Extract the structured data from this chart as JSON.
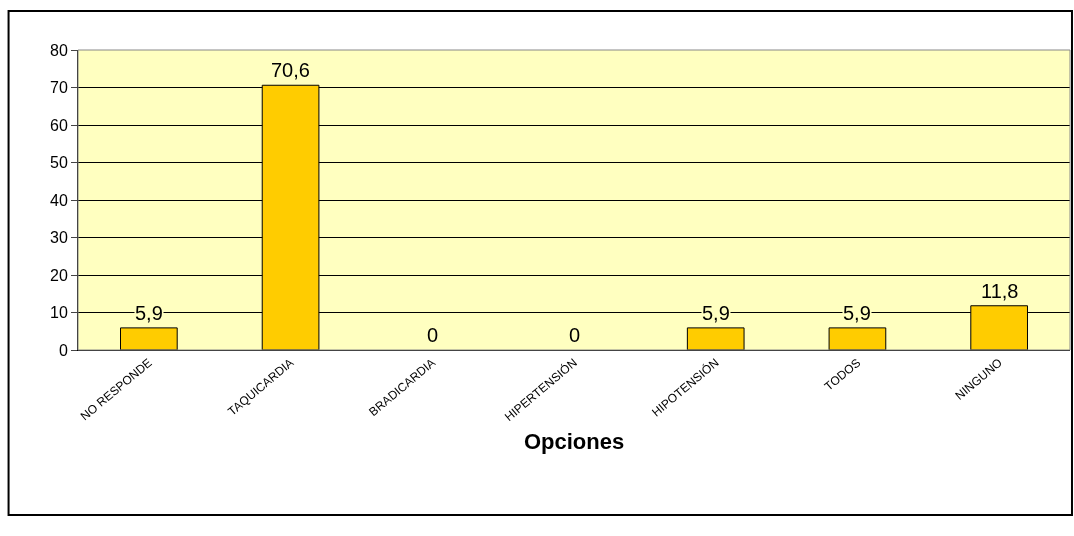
{
  "chart_data": {
    "type": "bar",
    "xlabel": "Opciones",
    "categories": [
      "NO RESPONDE",
      "TAQUICARDIA",
      "BRADICARDIA",
      "HIPERTENSIÓN",
      "HIPOTENSIÓN",
      "TODOS",
      "NINGUNO"
    ],
    "values": [
      5.9,
      70.6,
      0,
      0,
      5.9,
      5.9,
      11.8
    ],
    "value_labels": [
      "5,9",
      "70,6",
      "0",
      "0",
      "5,9",
      "5,9",
      "11,8"
    ],
    "color": "#ffcc00",
    "ylim": [
      0,
      80
    ],
    "yticks": [
      0,
      10,
      20,
      30,
      40,
      50,
      60,
      70,
      80
    ],
    "grid": "y",
    "legend": false
  }
}
